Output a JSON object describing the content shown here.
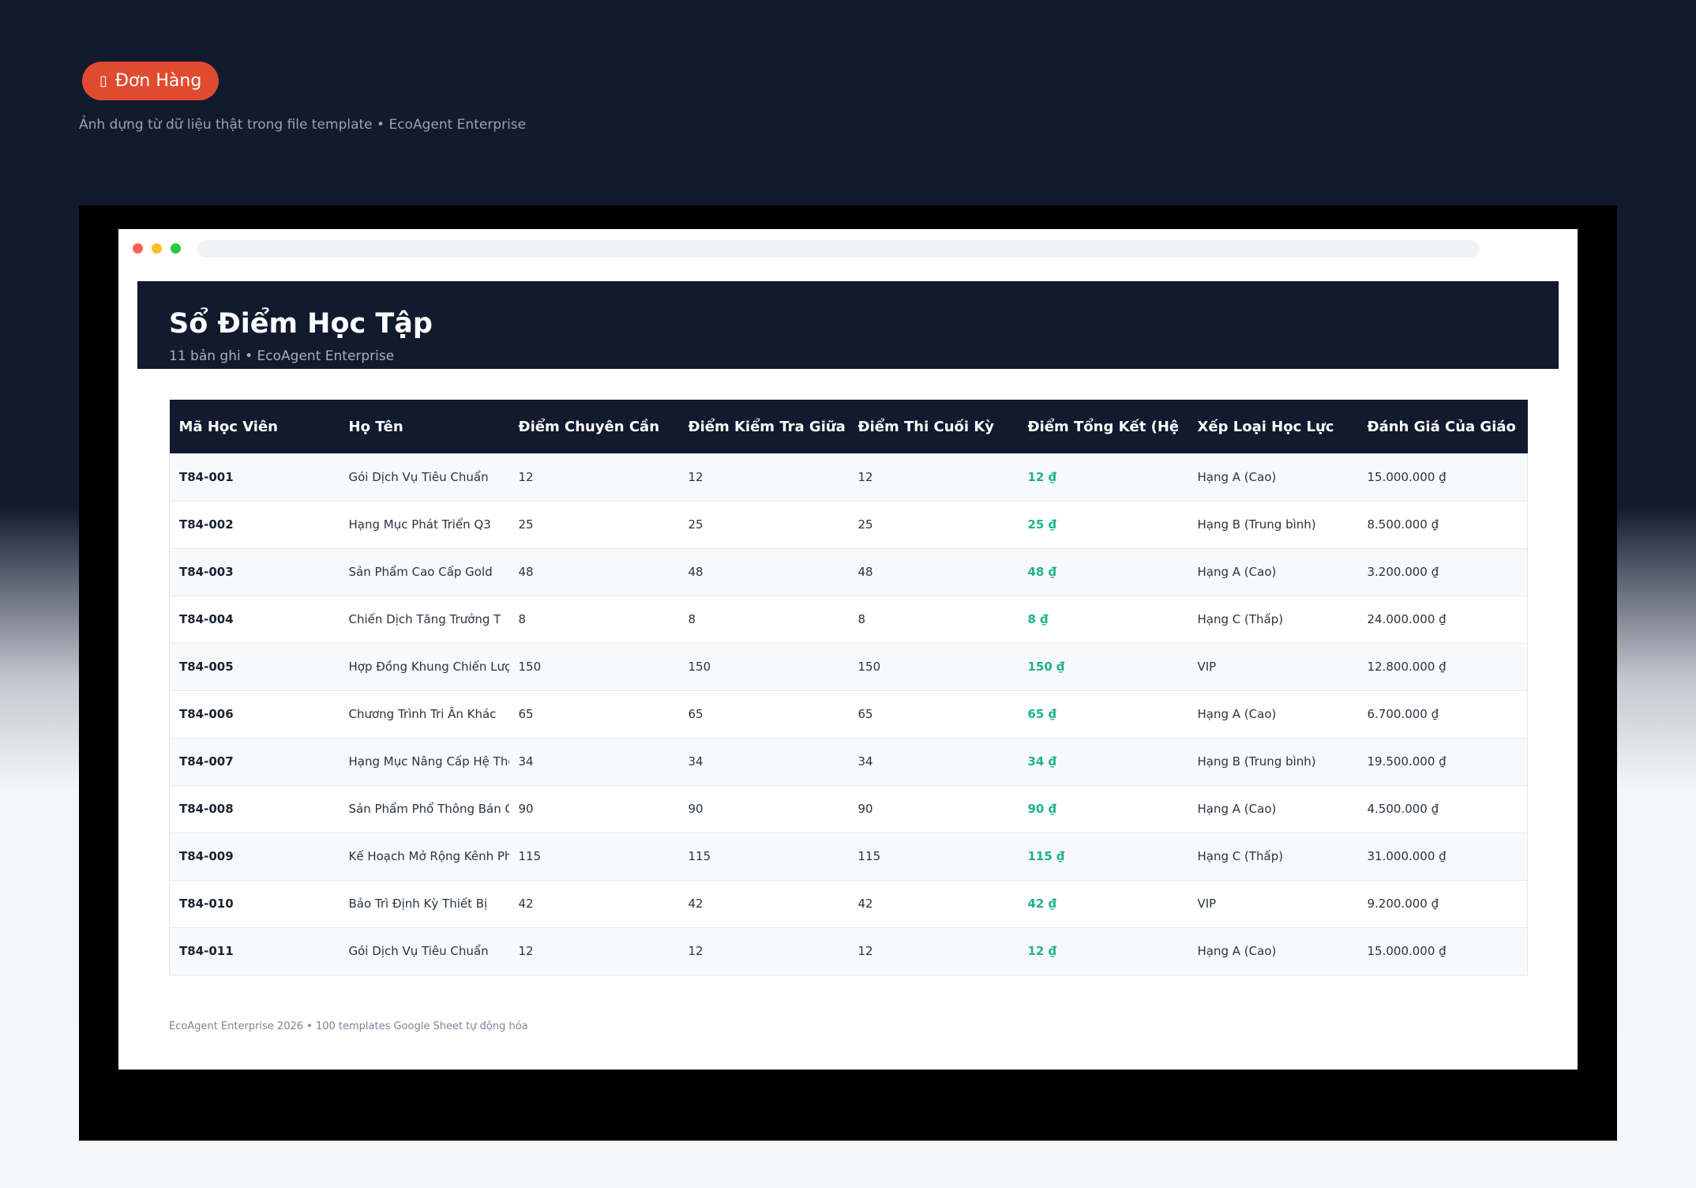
{
  "badge": {
    "icon": "cart-icon",
    "icon_glyph": "▯",
    "label": "Đơn Hàng"
  },
  "subtitle": "Ảnh dựng từ dữ liệu thật trong file template • EcoAgent Enterprise",
  "sheet": {
    "title": "Sổ Điểm Học Tập",
    "meta": "11 bản ghi • EcoAgent Enterprise"
  },
  "table": {
    "headers": [
      "Mã Học Viên",
      "Họ Tên",
      "Điểm Chuyên Cần",
      "Điểm Kiểm Tra Giữa",
      "Điểm Thi Cuối Kỳ",
      "Điểm Tổng Kết (Hệ",
      "Xếp Loại Học Lực",
      "Đánh Giá Của Giáo"
    ],
    "rows": [
      [
        "T84-001",
        "Gói Dịch Vụ Tiêu Chuẩn",
        "12",
        "12",
        "12",
        "12 ₫",
        "Hạng A (Cao)",
        "15.000.000 ₫"
      ],
      [
        "T84-002",
        "Hạng Mục Phát Triển Q3",
        "25",
        "25",
        "25",
        "25 ₫",
        "Hạng B (Trung bình)",
        "8.500.000 ₫"
      ],
      [
        "T84-003",
        "Sản Phẩm Cao Cấp Gold",
        "48",
        "48",
        "48",
        "48 ₫",
        "Hạng A (Cao)",
        "3.200.000 ₫"
      ],
      [
        "T84-004",
        "Chiến Dịch Tăng Trưởng T",
        "8",
        "8",
        "8",
        "8 ₫",
        "Hạng C (Thấp)",
        "24.000.000 ₫"
      ],
      [
        "T84-005",
        "Hợp Đồng Khung Chiến Lượ",
        "150",
        "150",
        "150",
        "150 ₫",
        "VIP",
        "12.800.000 ₫"
      ],
      [
        "T84-006",
        "Chương Trình Tri Ân Khác",
        "65",
        "65",
        "65",
        "65 ₫",
        "Hạng A (Cao)",
        "6.700.000 ₫"
      ],
      [
        "T84-007",
        "Hạng Mục Nâng Cấp Hệ Thố",
        "34",
        "34",
        "34",
        "34 ₫",
        "Hạng B (Trung bình)",
        "19.500.000 ₫"
      ],
      [
        "T84-008",
        "Sản Phẩm Phổ Thông Bán C",
        "90",
        "90",
        "90",
        "90 ₫",
        "Hạng A (Cao)",
        "4.500.000 ₫"
      ],
      [
        "T84-009",
        "Kế Hoạch Mở Rộng Kênh Ph",
        "115",
        "115",
        "115",
        "115 ₫",
        "Hạng C (Thấp)",
        "31.000.000 ₫"
      ],
      [
        "T84-010",
        "Bảo Trì Định Kỳ Thiết Bị",
        "42",
        "42",
        "42",
        "42 ₫",
        "VIP",
        "9.200.000 ₫"
      ],
      [
        "T84-011",
        "Gói Dịch Vụ Tiêu Chuẩn",
        "12",
        "12",
        "12",
        "12 ₫",
        "Hạng A (Cao)",
        "15.000.000 ₫"
      ]
    ]
  },
  "footer": "EcoAgent Enterprise 2026 • 100 templates Google Sheet tự động hóa",
  "colors": {
    "accent": "#e04b2f",
    "header_bg": "#111a2e",
    "total_text": "#1fb38a"
  }
}
